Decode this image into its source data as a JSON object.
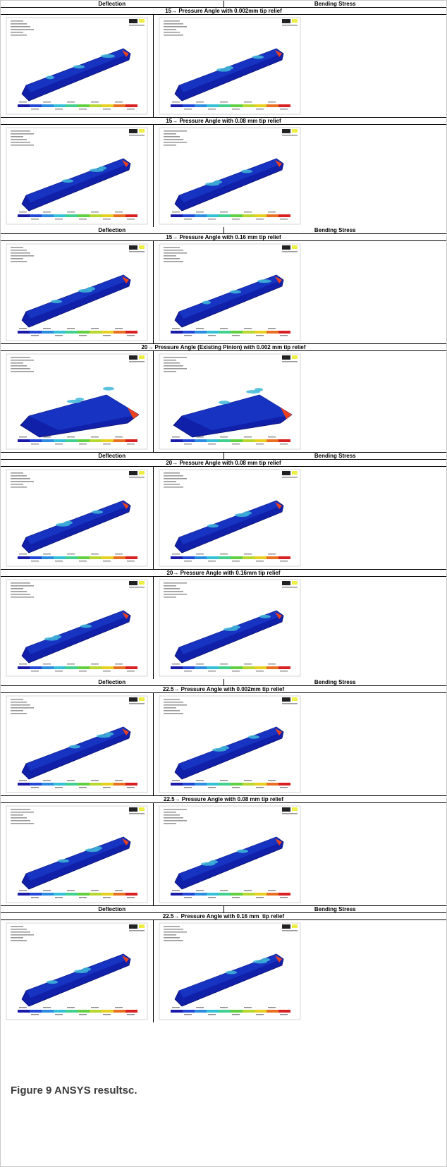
{
  "panels": [
    {
      "blocks": [
        {
          "headers": [
            "Deflection",
            "Bending Stress"
          ],
          "title": "15→ Pressure Angle with 0.002mm tip relief"
        },
        {
          "title": "15→ Pressure Angle with 0.08 mm tip relief"
        }
      ]
    },
    {
      "blocks": [
        {
          "headers": [
            "Deflection",
            "Bending Stress"
          ],
          "title": "15→ Pressure Angle with 0.16 mm tip relief"
        },
        {
          "title": "20→ Pressure Angle (Existing Pinion) with 0.002 mm tip relief"
        },
        {
          "headers": [
            "Deflection",
            "Bending Stress"
          ],
          "title": "20→ Pressure Angle with 0.08 mm tip relief"
        },
        {
          "title": "20→ Pressure Angle with 0.16mm tip relief"
        }
      ]
    },
    {
      "blocks": [
        {
          "headers": [
            "Deflection",
            "Bending Stress"
          ],
          "title": "22.5→ Pressure Angle with 0.002mm tip relief"
        },
        {
          "title": "22.5→ Pressure Angle with 0.08 mm tip relief"
        },
        {
          "headers": [
            "Deflection",
            "Bending Stress"
          ],
          "title": "22.5→ Pressure Angle with 0.16 mm  tip relief"
        }
      ]
    }
  ],
  "caption": {
    "label": "Figure 9",
    "text": "ANSYS resultsc."
  }
}
